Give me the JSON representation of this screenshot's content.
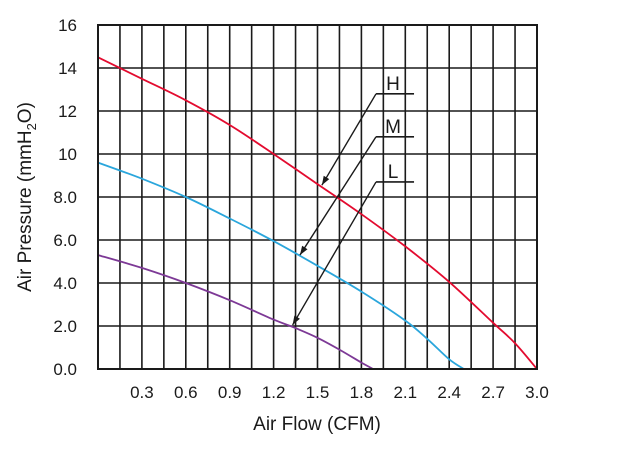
{
  "chart_data": {
    "type": "line",
    "title": "",
    "xlabel": "Air Flow (CFM)",
    "ylabel": "Air Pressure (mmH2O)",
    "ylabel_parts": {
      "prefix": "Air Pressure (mmH",
      "sub": "2",
      "suffix": "O)"
    },
    "xlim": [
      0,
      3.0
    ],
    "ylim": [
      0,
      16
    ],
    "grid": true,
    "x_ticks": [
      {
        "value": 0.3,
        "label": "0.3"
      },
      {
        "value": 0.6,
        "label": "0.6"
      },
      {
        "value": 0.9,
        "label": "0.9"
      },
      {
        "value": 1.2,
        "label": "1.2"
      },
      {
        "value": 1.5,
        "label": "1.5"
      },
      {
        "value": 1.8,
        "label": "1.8"
      },
      {
        "value": 2.1,
        "label": "2.1"
      },
      {
        "value": 2.4,
        "label": "2.4"
      },
      {
        "value": 2.7,
        "label": "2.7"
      },
      {
        "value": 3.0,
        "label": "3.0"
      }
    ],
    "y_ticks": [
      {
        "value": 0,
        "label": "0.0"
      },
      {
        "value": 2,
        "label": "2.0"
      },
      {
        "value": 4,
        "label": "4.0"
      },
      {
        "value": 6,
        "label": "6.0"
      },
      {
        "value": 8,
        "label": "8.0"
      },
      {
        "value": 10,
        "label": "10"
      },
      {
        "value": 12,
        "label": "12"
      },
      {
        "value": 14,
        "label": "14"
      },
      {
        "value": 16,
        "label": "16"
      }
    ],
    "series": [
      {
        "name": "H",
        "color": "#e30b2f",
        "x": [
          0,
          0.3,
          0.6,
          0.9,
          1.2,
          1.5,
          1.8,
          2.1,
          2.4,
          2.7,
          2.85,
          3.0
        ],
        "y": [
          14.5,
          13.5,
          12.5,
          11.35,
          10.0,
          8.6,
          7.2,
          5.7,
          4.05,
          2.15,
          1.2,
          0.0
        ],
        "label_point": {
          "x": 1.53,
          "y": 8.55
        },
        "label_text_pos": {
          "x": 1.9,
          "y": 12.8
        }
      },
      {
        "name": "M",
        "color": "#2aa6dc",
        "x": [
          0,
          0.3,
          0.6,
          0.9,
          1.2,
          1.5,
          1.8,
          2.1,
          2.25,
          2.4,
          2.5
        ],
        "y": [
          9.6,
          8.85,
          8.0,
          7.0,
          5.95,
          4.8,
          3.6,
          2.25,
          1.4,
          0.45,
          0.0
        ],
        "label_point": {
          "x": 1.38,
          "y": 5.3
        },
        "label_text_pos": {
          "x": 1.9,
          "y": 10.8
        }
      },
      {
        "name": "L",
        "color": "#7d3996",
        "x": [
          0,
          0.3,
          0.6,
          0.9,
          1.2,
          1.35,
          1.5,
          1.65,
          1.8,
          1.88
        ],
        "y": [
          5.3,
          4.7,
          4.0,
          3.2,
          2.3,
          1.9,
          1.45,
          0.9,
          0.3,
          0.0
        ],
        "label_point": {
          "x": 1.33,
          "y": 2.05
        },
        "label_text_pos": {
          "x": 1.9,
          "y": 8.7
        }
      }
    ]
  }
}
